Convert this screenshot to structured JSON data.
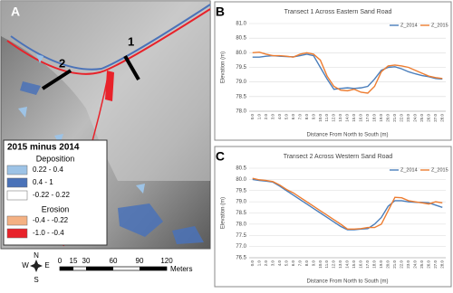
{
  "map": {
    "panel_label": "A",
    "transect_labels": [
      "1",
      "2"
    ],
    "legend": {
      "title": "2015 minus 2014",
      "groups": [
        {
          "name": "Deposition",
          "items": [
            {
              "label": "0.22 - 0.4",
              "color": "#9dc3e6"
            },
            {
              "label": "0.4 - 1",
              "color": "#4a72b8"
            },
            {
              "label": "-0.22 - 0.22",
              "color": "#ffffff"
            }
          ]
        },
        {
          "name": "Erosion",
          "items": [
            {
              "label": "-0.4 - -0.22",
              "color": "#f4b183"
            },
            {
              "label": "-1.0 - -0.4",
              "color": "#e8222a"
            }
          ]
        }
      ]
    },
    "scale_bar": {
      "ticks": [
        "0",
        "15",
        "30",
        "60",
        "90",
        "120"
      ],
      "unit": "Meters"
    },
    "compass": [
      "N",
      "E",
      "S",
      "W"
    ]
  },
  "chart_data": [
    {
      "type": "line",
      "label": "B",
      "title": "Transect 1 Across Eastern Sand Road",
      "x_label": "Distance From North to South (m)",
      "y_label": "Elevation (m)",
      "categories": [
        "0.0",
        "1.0",
        "2.0",
        "3.0",
        "4.0",
        "5.0",
        "6.0",
        "7.0",
        "8.0",
        "9.0",
        "10.0",
        "11.0",
        "12.0",
        "13.0",
        "14.0",
        "15.0",
        "16.0",
        "17.0",
        "18.0",
        "19.0",
        "20.0",
        "21.0",
        "22.0",
        "23.0",
        "24.0",
        "25.0",
        "26.0",
        "27.0",
        "28.0"
      ],
      "ylim": [
        78,
        81
      ],
      "yticks": [
        {
          "value": 78,
          "label": "78.0"
        },
        78.5,
        {
          "value": 79,
          "label": "79.0"
        },
        79.5,
        {
          "value": 80,
          "label": "80.0"
        },
        80.5,
        {
          "value": 81,
          "label": "81.0"
        }
      ],
      "grid": true,
      "legend": "top-right",
      "series": [
        {
          "name": "Z_2014",
          "color": "#4a7ebb",
          "values": [
            79.85,
            79.85,
            79.88,
            79.9,
            79.88,
            79.87,
            79.86,
            79.9,
            79.95,
            79.9,
            79.5,
            79.1,
            78.75,
            78.78,
            78.8,
            78.78,
            78.8,
            78.85,
            79.1,
            79.4,
            79.5,
            79.52,
            79.45,
            79.35,
            79.28,
            79.22,
            79.18,
            79.12,
            79.1
          ]
        },
        {
          "name": "Z_2015",
          "color": "#ed7d31",
          "values": [
            80.0,
            80.02,
            79.95,
            79.9,
            79.9,
            79.88,
            79.85,
            79.95,
            80.0,
            79.95,
            79.75,
            79.2,
            78.85,
            78.72,
            78.7,
            78.75,
            78.65,
            78.62,
            78.85,
            79.35,
            79.55,
            79.58,
            79.55,
            79.5,
            79.4,
            79.3,
            79.2,
            79.15,
            79.12
          ]
        }
      ]
    },
    {
      "type": "line",
      "label": "C",
      "title": "Transect 2 Across Western Sand Road",
      "x_label": "Distance From North to South (m)",
      "y_label": "Elevation (m)",
      "categories": [
        "0.0",
        "1.0",
        "2.0",
        "3.0",
        "4.0",
        "5.0",
        "6.0",
        "7.0",
        "8.0",
        "9.0",
        "10.0",
        "11.0",
        "12.0",
        "13.0",
        "14.0",
        "15.0",
        "16.0",
        "17.0",
        "18.0",
        "19.0",
        "20.0",
        "21.0",
        "22.0",
        "23.0",
        "24.0",
        "25.0",
        "26.0",
        "27.0",
        "28.0"
      ],
      "ylim": [
        76.5,
        80.5
      ],
      "yticks": [
        76.5,
        {
          "value": 77,
          "label": "77.0"
        },
        77.5,
        {
          "value": 78,
          "label": "78.0"
        },
        78.5,
        {
          "value": 79,
          "label": "79.0"
        },
        79.5,
        {
          "value": 80,
          "label": "80.0"
        },
        80.5
      ],
      "grid": true,
      "legend": "top-right",
      "series": [
        {
          "name": "Z_2014",
          "color": "#4a7ebb",
          "values": [
            80.0,
            79.95,
            79.92,
            79.88,
            79.7,
            79.5,
            79.3,
            79.1,
            78.9,
            78.7,
            78.5,
            78.3,
            78.1,
            77.9,
            77.75,
            77.75,
            77.78,
            77.8,
            78.0,
            78.3,
            78.8,
            79.05,
            79.05,
            79.0,
            78.98,
            78.97,
            78.95,
            78.85,
            78.75
          ]
        },
        {
          "name": "Z_2015",
          "color": "#ed7d31",
          "values": [
            80.05,
            79.98,
            79.95,
            79.9,
            79.75,
            79.55,
            79.4,
            79.2,
            79.0,
            78.8,
            78.6,
            78.4,
            78.2,
            78.0,
            77.78,
            77.78,
            77.8,
            77.85,
            77.85,
            78.0,
            78.6,
            79.2,
            79.18,
            79.05,
            79.0,
            78.95,
            78.9,
            79.0,
            78.95
          ]
        }
      ]
    }
  ]
}
